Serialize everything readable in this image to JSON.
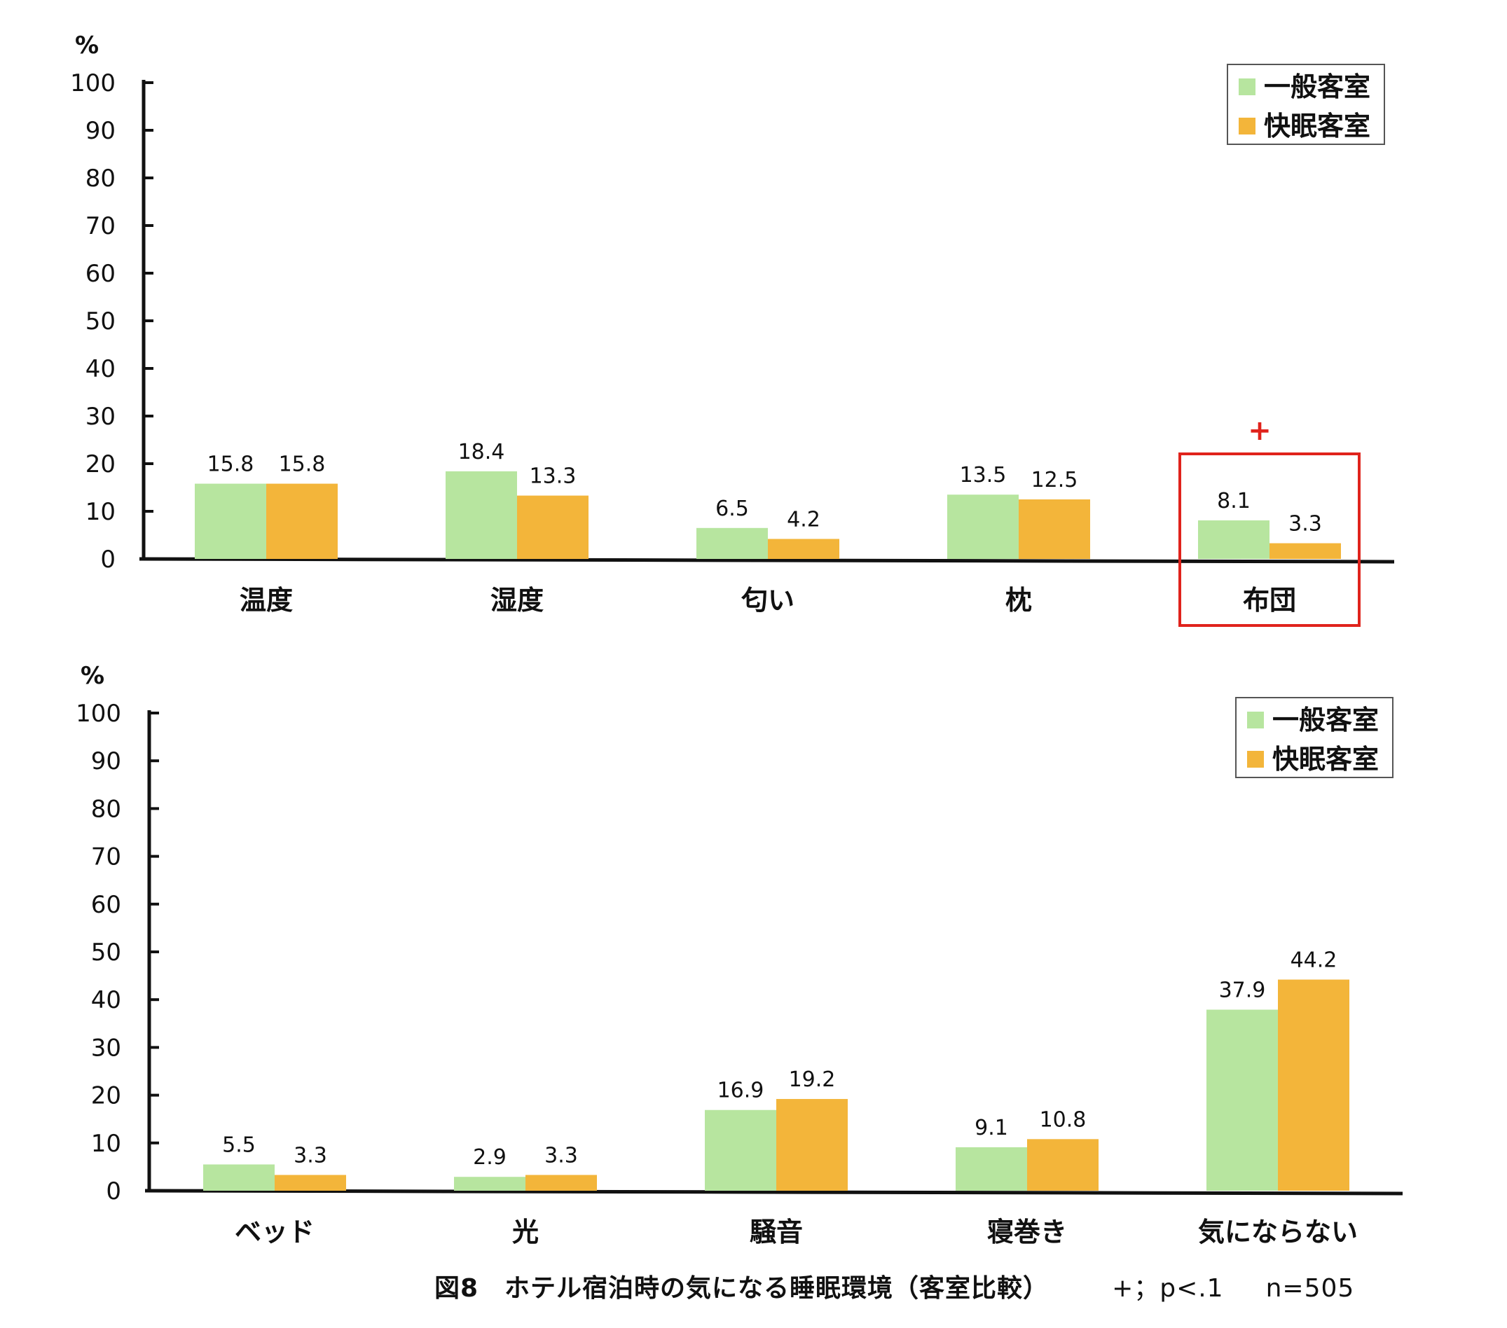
{
  "chart_data": [
    {
      "type": "bar",
      "ylabel": "%",
      "ylim": [
        0,
        100
      ],
      "yticks": [
        "0",
        "10",
        "20",
        "30",
        "40",
        "50",
        "60",
        "70",
        "80",
        "90",
        "100"
      ],
      "categories": [
        "温度",
        "湿度",
        "匂い",
        "枕",
        "布団"
      ],
      "series": [
        {
          "name": "一般客室",
          "values": [
            15.8,
            18.4,
            6.5,
            13.5,
            8.1
          ],
          "labels": [
            "15.8",
            "18.4",
            "6.5",
            "13.5",
            "8.1"
          ]
        },
        {
          "name": "快眠客室",
          "values": [
            15.8,
            13.3,
            4.2,
            12.5,
            3.3
          ],
          "labels": [
            "15.8",
            "13.3",
            "4.2",
            "12.5",
            "3.3"
          ]
        }
      ],
      "legend": "top-right",
      "highlight": {
        "category": "布団",
        "mark": "+",
        "color": "#e0231c"
      }
    },
    {
      "type": "bar",
      "ylabel": "%",
      "ylim": [
        0,
        100
      ],
      "yticks": [
        "0",
        "10",
        "20",
        "30",
        "40",
        "50",
        "60",
        "70",
        "80",
        "90",
        "100"
      ],
      "categories": [
        "ベッド",
        "光",
        "騒音",
        "寝巻き",
        "気にならない"
      ],
      "series": [
        {
          "name": "一般客室",
          "values": [
            5.5,
            2.9,
            16.9,
            9.1,
            37.9
          ],
          "labels": [
            "5.5",
            "2.9",
            "16.9",
            "9.1",
            "37.9"
          ]
        },
        {
          "name": "快眠客室",
          "values": [
            3.3,
            3.3,
            19.2,
            10.8,
            44.2
          ],
          "labels": [
            "3.3",
            "3.3",
            "19.2",
            "10.8",
            "44.2"
          ]
        }
      ],
      "legend": "top-right"
    }
  ],
  "colors": {
    "general": "#b7e59f",
    "sleep": "#f3b53a",
    "axis": "#111111",
    "highlight": "#e0231c"
  },
  "caption": {
    "title": "図8　ホテル宿泊時の気になる睡眠環境（客室比較）",
    "note": "+；p<.1",
    "n": "n=505"
  }
}
